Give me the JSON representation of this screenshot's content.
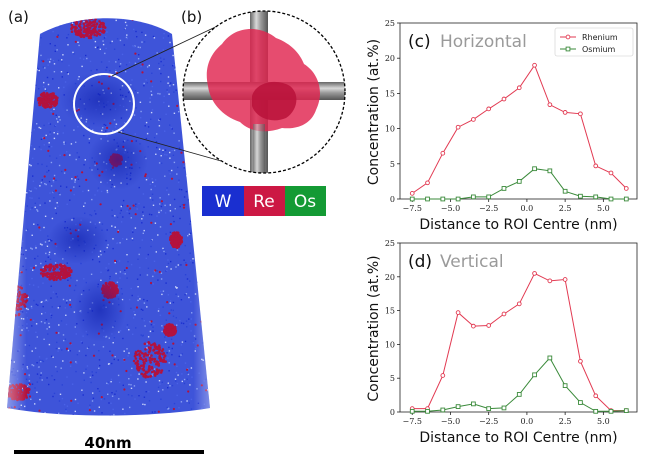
{
  "panels": {
    "a": "(a)",
    "b": "(b)"
  },
  "scale_bar": {
    "label": "40nm"
  },
  "element_legend": [
    {
      "symbol": "W",
      "color": "#1a2fd0"
    },
    {
      "symbol": "Re",
      "color": "#cc1844"
    },
    {
      "symbol": "Os",
      "color": "#149a34"
    }
  ],
  "colors": {
    "rhenium": "#e23a52",
    "osmium": "#3a8a3a",
    "tip_blue": "#2a44d6",
    "tip_red": "#b3123e",
    "particle": "#e0244f"
  },
  "chart_data": [
    {
      "type": "line",
      "panel_label": "(c)",
      "title": "Horizontal",
      "xlabel": "Distance to ROI Centre (nm)",
      "ylabel": "Concentration (at.%)",
      "xlim": [
        -8.3,
        7.2
      ],
      "ylim": [
        0,
        25
      ],
      "xticks": [
        -7.5,
        -5.0,
        -2.5,
        0.0,
        2.5,
        5.0
      ],
      "xtick_labels": [
        "−7.5",
        "−5.0",
        "−2.5",
        "0.0",
        "2.5",
        "5.0"
      ],
      "yticks": [
        0,
        5,
        10,
        15,
        20,
        25
      ],
      "legend": [
        "Rhenium",
        "Osmium"
      ],
      "legend_position": "top-right",
      "series": [
        {
          "name": "Rhenium",
          "x": [
            -7.5,
            -6.5,
            -5.5,
            -4.5,
            -3.5,
            -2.5,
            -1.5,
            -0.5,
            0.5,
            1.5,
            2.5,
            3.5,
            4.5,
            5.5,
            6.5
          ],
          "y": [
            0.8,
            2.3,
            6.5,
            10.2,
            11.3,
            12.8,
            14.2,
            15.8,
            19.0,
            13.4,
            12.3,
            12.1,
            4.7,
            3.7,
            1.5
          ]
        },
        {
          "name": "Osmium",
          "x": [
            -7.5,
            -6.5,
            -5.5,
            -4.5,
            -3.5,
            -2.5,
            -1.5,
            -0.5,
            0.5,
            1.5,
            2.5,
            3.5,
            4.5,
            5.5,
            6.5
          ],
          "y": [
            0,
            0,
            0,
            0,
            0.3,
            0.3,
            1.5,
            2.5,
            4.3,
            4.0,
            1.1,
            0.4,
            0.3,
            0,
            0
          ]
        }
      ]
    },
    {
      "type": "line",
      "panel_label": "(d)",
      "title": "Vertical",
      "xlabel": "Distance to ROI Centre (nm)",
      "ylabel": "Concentration (at.%)",
      "xlim": [
        -8.3,
        7.2
      ],
      "ylim": [
        0,
        25
      ],
      "xticks": [
        -7.5,
        -5.0,
        -2.5,
        0.0,
        2.5,
        5.0
      ],
      "xtick_labels": [
        "−7.5",
        "−5.0",
        "−2.5",
        "0.0",
        "2.5",
        "5.0"
      ],
      "yticks": [
        0,
        5,
        10,
        15,
        20,
        25
      ],
      "series": [
        {
          "name": "Rhenium",
          "x": [
            -7.5,
            -6.5,
            -5.5,
            -4.5,
            -3.5,
            -2.5,
            -1.5,
            -0.5,
            0.5,
            1.5,
            2.5,
            3.5,
            4.5,
            5.5,
            6.5
          ],
          "y": [
            0.5,
            0.5,
            5.4,
            14.7,
            12.7,
            12.8,
            14.5,
            16.0,
            20.5,
            19.4,
            19.6,
            7.5,
            2.4,
            0.2,
            0.2
          ]
        },
        {
          "name": "Osmium",
          "x": [
            -7.5,
            -6.5,
            -5.5,
            -4.5,
            -3.5,
            -2.5,
            -1.5,
            -0.5,
            0.5,
            1.5,
            2.5,
            3.5,
            4.5,
            5.5,
            6.5
          ],
          "y": [
            0.1,
            0.1,
            0.3,
            0.8,
            1.2,
            0.5,
            0.6,
            2.6,
            5.5,
            8.0,
            3.9,
            1.4,
            0.1,
            0.1,
            0.2
          ]
        }
      ]
    }
  ]
}
